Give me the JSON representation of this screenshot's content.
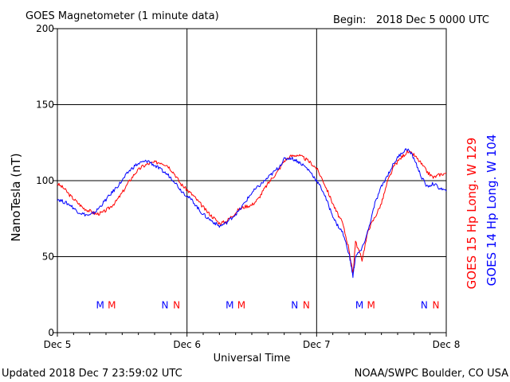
{
  "header": {
    "title": "GOES Magnetometer (1 minute data)",
    "begin_label": "Begin:",
    "begin_value": "2018 Dec 5 0000 UTC"
  },
  "footer": {
    "updated": "Updated 2018 Dec  7 23:59:02 UTC",
    "source": "NOAA/SWPC Boulder, CO USA"
  },
  "colors": {
    "goes15": "#ff0000",
    "goes14": "#0000ff",
    "grid": "#000000"
  },
  "chart_data": {
    "type": "line",
    "title": "GOES Magnetometer (1 minute data)",
    "xlabel": "Universal Time",
    "ylabel": "NanoTesla (nT)",
    "x_unit": "days since 2018 Dec 5 0000 UTC",
    "xlim": [
      0,
      3
    ],
    "ylim": [
      0,
      200
    ],
    "yticks": [
      0,
      50,
      100,
      150,
      200
    ],
    "xticks": [
      {
        "x": 0,
        "label": "Dec 5"
      },
      {
        "x": 1,
        "label": "Dec 6"
      },
      {
        "x": 2,
        "label": "Dec 7"
      },
      {
        "x": 3,
        "label": "Dec 8"
      }
    ],
    "grid": true,
    "legend": "right, rotated vertical",
    "series": [
      {
        "name": "GOES 15 Hp  Long. W 129",
        "color": "#ff0000",
        "points": [
          [
            0.0,
            98
          ],
          [
            0.05,
            95
          ],
          [
            0.1,
            90
          ],
          [
            0.15,
            86
          ],
          [
            0.2,
            82
          ],
          [
            0.25,
            80
          ],
          [
            0.3,
            78
          ],
          [
            0.35,
            79
          ],
          [
            0.4,
            82
          ],
          [
            0.45,
            86
          ],
          [
            0.5,
            92
          ],
          [
            0.55,
            99
          ],
          [
            0.6,
            105
          ],
          [
            0.65,
            109
          ],
          [
            0.7,
            111
          ],
          [
            0.75,
            112
          ],
          [
            0.8,
            112
          ],
          [
            0.85,
            110
          ],
          [
            0.9,
            105
          ],
          [
            0.95,
            98
          ],
          [
            1.0,
            94
          ],
          [
            1.05,
            90
          ],
          [
            1.1,
            85
          ],
          [
            1.15,
            80
          ],
          [
            1.2,
            76
          ],
          [
            1.25,
            72
          ],
          [
            1.3,
            73
          ],
          [
            1.35,
            77
          ],
          [
            1.4,
            81
          ],
          [
            1.45,
            83
          ],
          [
            1.5,
            84
          ],
          [
            1.55,
            88
          ],
          [
            1.6,
            95
          ],
          [
            1.65,
            101
          ],
          [
            1.7,
            106
          ],
          [
            1.75,
            113
          ],
          [
            1.8,
            116
          ],
          [
            1.85,
            117
          ],
          [
            1.9,
            115
          ],
          [
            1.95,
            112
          ],
          [
            2.0,
            108
          ],
          [
            2.05,
            100
          ],
          [
            2.1,
            90
          ],
          [
            2.15,
            80
          ],
          [
            2.2,
            72
          ],
          [
            2.25,
            55
          ],
          [
            2.28,
            38
          ],
          [
            2.3,
            60
          ],
          [
            2.35,
            48
          ],
          [
            2.4,
            68
          ],
          [
            2.45,
            76
          ],
          [
            2.5,
            85
          ],
          [
            2.55,
            100
          ],
          [
            2.6,
            110
          ],
          [
            2.65,
            115
          ],
          [
            2.7,
            119
          ],
          [
            2.75,
            117
          ],
          [
            2.8,
            112
          ],
          [
            2.85,
            106
          ],
          [
            2.9,
            102
          ],
          [
            2.95,
            104
          ],
          [
            3.0,
            105
          ]
        ]
      },
      {
        "name": "GOES 14 Hp  Long. W 104",
        "color": "#0000ff",
        "points": [
          [
            0.0,
            88
          ],
          [
            0.05,
            86
          ],
          [
            0.1,
            84
          ],
          [
            0.15,
            80
          ],
          [
            0.2,
            78
          ],
          [
            0.25,
            77
          ],
          [
            0.3,
            80
          ],
          [
            0.35,
            85
          ],
          [
            0.4,
            90
          ],
          [
            0.45,
            95
          ],
          [
            0.5,
            100
          ],
          [
            0.55,
            106
          ],
          [
            0.6,
            110
          ],
          [
            0.65,
            112
          ],
          [
            0.7,
            113
          ],
          [
            0.75,
            110
          ],
          [
            0.8,
            107
          ],
          [
            0.85,
            104
          ],
          [
            0.9,
            100
          ],
          [
            0.95,
            94
          ],
          [
            1.0,
            90
          ],
          [
            1.05,
            86
          ],
          [
            1.1,
            80
          ],
          [
            1.15,
            76
          ],
          [
            1.2,
            73
          ],
          [
            1.25,
            70
          ],
          [
            1.3,
            72
          ],
          [
            1.35,
            76
          ],
          [
            1.4,
            80
          ],
          [
            1.45,
            86
          ],
          [
            1.5,
            92
          ],
          [
            1.55,
            96
          ],
          [
            1.6,
            100
          ],
          [
            1.65,
            104
          ],
          [
            1.7,
            108
          ],
          [
            1.75,
            114
          ],
          [
            1.8,
            115
          ],
          [
            1.85,
            113
          ],
          [
            1.9,
            110
          ],
          [
            1.95,
            106
          ],
          [
            2.0,
            100
          ],
          [
            2.05,
            93
          ],
          [
            2.1,
            82
          ],
          [
            2.15,
            72
          ],
          [
            2.2,
            66
          ],
          [
            2.25,
            52
          ],
          [
            2.28,
            37
          ],
          [
            2.3,
            50
          ],
          [
            2.35,
            55
          ],
          [
            2.4,
            68
          ],
          [
            2.45,
            85
          ],
          [
            2.5,
            96
          ],
          [
            2.55,
            104
          ],
          [
            2.6,
            112
          ],
          [
            2.65,
            118
          ],
          [
            2.7,
            121
          ],
          [
            2.75,
            115
          ],
          [
            2.8,
            104
          ],
          [
            2.85,
            96
          ],
          [
            2.9,
            98
          ],
          [
            2.95,
            95
          ],
          [
            3.0,
            93
          ]
        ]
      }
    ],
    "annotations": [
      {
        "text": "M",
        "x": 0.33,
        "y": 16,
        "color": "#0000ff"
      },
      {
        "text": "M",
        "x": 0.42,
        "y": 16,
        "color": "#ff0000"
      },
      {
        "text": "N",
        "x": 0.83,
        "y": 16,
        "color": "#0000ff"
      },
      {
        "text": "N",
        "x": 0.92,
        "y": 16,
        "color": "#ff0000"
      },
      {
        "text": "M",
        "x": 1.33,
        "y": 16,
        "color": "#0000ff"
      },
      {
        "text": "M",
        "x": 1.42,
        "y": 16,
        "color": "#ff0000"
      },
      {
        "text": "N",
        "x": 1.83,
        "y": 16,
        "color": "#0000ff"
      },
      {
        "text": "N",
        "x": 1.92,
        "y": 16,
        "color": "#ff0000"
      },
      {
        "text": "M",
        "x": 2.33,
        "y": 16,
        "color": "#0000ff"
      },
      {
        "text": "M",
        "x": 2.42,
        "y": 16,
        "color": "#ff0000"
      },
      {
        "text": "N",
        "x": 2.83,
        "y": 16,
        "color": "#0000ff"
      },
      {
        "text": "N",
        "x": 2.92,
        "y": 16,
        "color": "#ff0000"
      }
    ]
  }
}
